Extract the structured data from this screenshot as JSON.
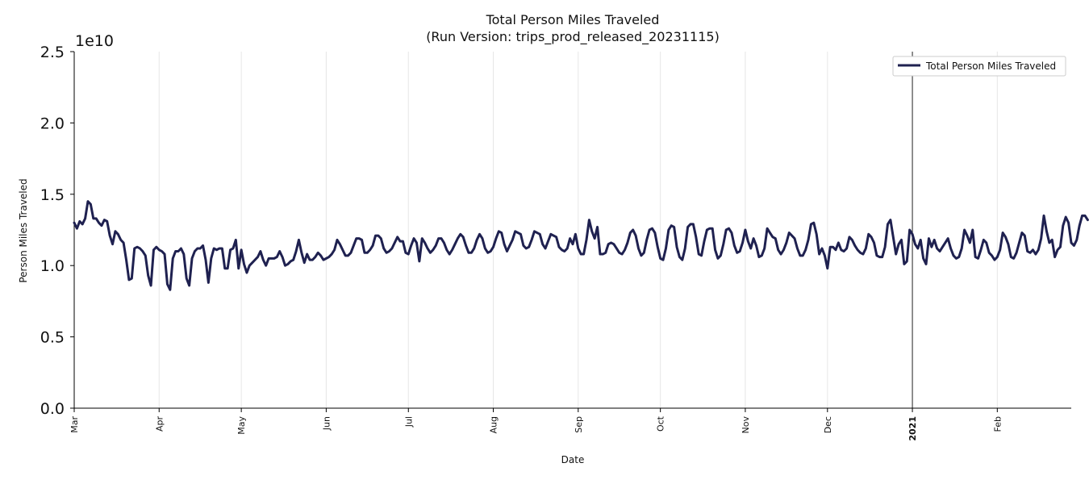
{
  "chart_data": {
    "type": "line",
    "title": "Total Person Miles Traveled",
    "subtitle": "(Run Version: trips_prod_released_20231115)",
    "xlabel": "Date",
    "ylabel": "Person Miles Traveled",
    "y_offset_label": "1e10",
    "ylim": [
      0.0,
      2.5
    ],
    "y_unit_multiplier": 10000000000,
    "yticks": [
      "0.0",
      "0.5",
      "1.0",
      "1.5",
      "2.0",
      "2.5"
    ],
    "x_range": [
      "2020-03-01",
      "2021-02-28"
    ],
    "xticks": [
      {
        "date": "2020-03-01",
        "label": "Mar",
        "bold": false
      },
      {
        "date": "2020-04-01",
        "label": "Apr",
        "bold": false
      },
      {
        "date": "2020-05-01",
        "label": "May",
        "bold": false
      },
      {
        "date": "2020-06-01",
        "label": "Jun",
        "bold": false
      },
      {
        "date": "2020-07-01",
        "label": "Jul",
        "bold": false
      },
      {
        "date": "2020-08-01",
        "label": "Aug",
        "bold": false
      },
      {
        "date": "2020-09-01",
        "label": "Sep",
        "bold": false
      },
      {
        "date": "2020-10-01",
        "label": "Oct",
        "bold": false
      },
      {
        "date": "2020-11-01",
        "label": "Nov",
        "bold": false
      },
      {
        "date": "2020-12-01",
        "label": "Dec",
        "bold": false
      },
      {
        "date": "2021-01-01",
        "label": "2021",
        "bold": true
      },
      {
        "date": "2021-02-01",
        "label": "Feb",
        "bold": false
      }
    ],
    "vertical_marker_date": "2021-01-01",
    "grid": "vertical",
    "legend_position": "top-right",
    "series": [
      {
        "name": "Total Person Miles Traveled",
        "color": "#1f2150",
        "start_date": "2020-03-01",
        "frequency": "daily",
        "values": [
          1.3,
          1.26,
          1.31,
          1.29,
          1.33,
          1.45,
          1.43,
          1.33,
          1.33,
          1.3,
          1.28,
          1.32,
          1.31,
          1.21,
          1.15,
          1.24,
          1.22,
          1.18,
          1.16,
          1.04,
          0.9,
          0.91,
          1.12,
          1.13,
          1.12,
          1.1,
          1.07,
          0.93,
          0.86,
          1.11,
          1.13,
          1.11,
          1.1,
          1.08,
          0.87,
          0.83,
          1.05,
          1.1,
          1.1,
          1.12,
          1.08,
          0.91,
          0.86,
          1.05,
          1.1,
          1.12,
          1.12,
          1.14,
          1.04,
          0.88,
          1.05,
          1.12,
          1.11,
          1.12,
          1.12,
          0.98,
          0.98,
          1.11,
          1.12,
          1.18,
          0.98,
          1.11,
          1.01,
          0.95,
          1.0,
          1.02,
          1.04,
          1.06,
          1.1,
          1.04,
          1.0,
          1.05,
          1.05,
          1.05,
          1.06,
          1.1,
          1.06,
          1.0,
          1.01,
          1.03,
          1.04,
          1.1,
          1.18,
          1.09,
          1.02,
          1.08,
          1.04,
          1.04,
          1.06,
          1.09,
          1.07,
          1.04,
          1.05,
          1.06,
          1.08,
          1.11,
          1.18,
          1.15,
          1.11,
          1.07,
          1.07,
          1.09,
          1.14,
          1.19,
          1.19,
          1.18,
          1.09,
          1.09,
          1.11,
          1.14,
          1.21,
          1.21,
          1.19,
          1.12,
          1.09,
          1.1,
          1.12,
          1.16,
          1.2,
          1.17,
          1.17,
          1.09,
          1.08,
          1.14,
          1.19,
          1.16,
          1.03,
          1.19,
          1.16,
          1.12,
          1.09,
          1.11,
          1.14,
          1.19,
          1.19,
          1.16,
          1.11,
          1.08,
          1.11,
          1.15,
          1.19,
          1.22,
          1.2,
          1.14,
          1.09,
          1.09,
          1.12,
          1.18,
          1.22,
          1.19,
          1.12,
          1.09,
          1.1,
          1.13,
          1.19,
          1.24,
          1.23,
          1.15,
          1.1,
          1.14,
          1.18,
          1.24,
          1.23,
          1.22,
          1.14,
          1.12,
          1.13,
          1.18,
          1.24,
          1.23,
          1.22,
          1.15,
          1.12,
          1.17,
          1.22,
          1.21,
          1.2,
          1.13,
          1.11,
          1.1,
          1.12,
          1.19,
          1.15,
          1.22,
          1.12,
          1.08,
          1.08,
          1.18,
          1.32,
          1.24,
          1.19,
          1.27,
          1.08,
          1.08,
          1.09,
          1.15,
          1.16,
          1.15,
          1.12,
          1.09,
          1.08,
          1.11,
          1.16,
          1.23,
          1.25,
          1.21,
          1.12,
          1.07,
          1.09,
          1.18,
          1.25,
          1.26,
          1.23,
          1.13,
          1.05,
          1.04,
          1.12,
          1.25,
          1.28,
          1.27,
          1.13,
          1.06,
          1.04,
          1.12,
          1.27,
          1.29,
          1.29,
          1.2,
          1.08,
          1.07,
          1.17,
          1.25,
          1.26,
          1.26,
          1.11,
          1.05,
          1.07,
          1.15,
          1.25,
          1.26,
          1.23,
          1.14,
          1.09,
          1.1,
          1.16,
          1.25,
          1.17,
          1.12,
          1.19,
          1.14,
          1.06,
          1.07,
          1.12,
          1.26,
          1.23,
          1.2,
          1.19,
          1.11,
          1.08,
          1.11,
          1.16,
          1.23,
          1.21,
          1.19,
          1.12,
          1.07,
          1.07,
          1.11,
          1.18,
          1.29,
          1.3,
          1.22,
          1.08,
          1.12,
          1.07,
          0.98,
          1.13,
          1.13,
          1.11,
          1.16,
          1.11,
          1.1,
          1.12,
          1.2,
          1.18,
          1.14,
          1.11,
          1.09,
          1.08,
          1.12,
          1.22,
          1.2,
          1.16,
          1.07,
          1.06,
          1.06,
          1.13,
          1.29,
          1.32,
          1.2,
          1.08,
          1.15,
          1.18,
          1.01,
          1.03,
          1.25,
          1.22,
          1.15,
          1.12,
          1.18,
          1.05,
          1.01,
          1.19,
          1.13,
          1.18,
          1.12,
          1.1,
          1.13,
          1.16,
          1.19,
          1.12,
          1.07,
          1.05,
          1.06,
          1.12,
          1.25,
          1.21,
          1.16,
          1.25,
          1.06,
          1.05,
          1.11,
          1.18,
          1.16,
          1.09,
          1.07,
          1.04,
          1.06,
          1.11,
          1.23,
          1.2,
          1.15,
          1.06,
          1.05,
          1.09,
          1.16,
          1.23,
          1.21,
          1.1,
          1.09,
          1.11,
          1.08,
          1.11,
          1.19,
          1.35,
          1.24,
          1.16,
          1.18,
          1.06,
          1.11,
          1.13,
          1.28,
          1.34,
          1.3,
          1.16,
          1.14,
          1.18,
          1.28,
          1.35,
          1.35,
          1.32
        ]
      }
    ]
  }
}
